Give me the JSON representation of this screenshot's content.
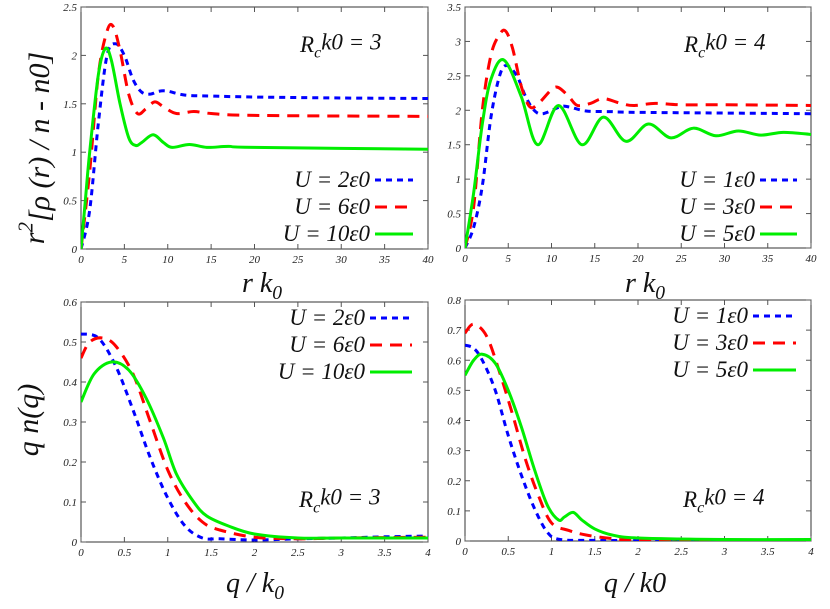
{
  "chart_data": [
    {
      "type": "line",
      "panel": "top-left",
      "xlabel": [
        "r k",
        "0"
      ],
      "ylabel": [
        "r",
        "2",
        "[ρ (r) / n - n0]"
      ],
      "annotation": [
        "R",
        "c",
        "k0 = 3"
      ],
      "xlim": [
        0,
        40
      ],
      "ylim": [
        0,
        2.5
      ],
      "xticks": [
        "0",
        "5",
        "10",
        "15",
        "20",
        "25",
        "30",
        "35",
        "40"
      ],
      "yticks": [
        "0",
        "0.5",
        "1",
        "1.5",
        "2",
        "2.5"
      ],
      "legend_placement": "bottom-right",
      "series": [
        {
          "name": "U = 2ε0",
          "color": "#0000ff",
          "style": "dotted",
          "x": [
            0,
            1,
            2,
            3,
            4,
            5,
            6,
            7,
            8,
            9,
            10,
            12,
            15,
            20,
            30,
            40
          ],
          "y": [
            0,
            0.4,
            1.3,
            2.0,
            2.12,
            2.0,
            1.75,
            1.62,
            1.6,
            1.63,
            1.63,
            1.59,
            1.58,
            1.57,
            1.56,
            1.555
          ]
        },
        {
          "name": "U = 6ε0",
          "color": "#ff0000",
          "style": "dashed",
          "x": [
            0,
            1,
            2,
            3,
            3.7,
            4.5,
            5.5,
            6.5,
            7.5,
            8.5,
            9.5,
            11,
            13,
            15,
            20,
            40
          ],
          "y": [
            0,
            0.8,
            1.8,
            2.25,
            2.3,
            2.05,
            1.6,
            1.4,
            1.45,
            1.52,
            1.47,
            1.4,
            1.42,
            1.4,
            1.38,
            1.37
          ]
        },
        {
          "name": "U = 10ε0",
          "color": "#00ee00",
          "style": "solid",
          "x": [
            0,
            0.5,
            1,
            2,
            2.8,
            3.5,
            4.5,
            5.5,
            6.3,
            7,
            8.3,
            9.5,
            10.5,
            12.5,
            14.5,
            17,
            20,
            40
          ],
          "y": [
            0,
            0.5,
            1.0,
            1.8,
            2.07,
            1.95,
            1.5,
            1.15,
            1.07,
            1.1,
            1.18,
            1.1,
            1.05,
            1.08,
            1.05,
            1.06,
            1.05,
            1.03
          ]
        }
      ]
    },
    {
      "type": "line",
      "panel": "top-right",
      "xlabel": [
        "r k",
        "0"
      ],
      "annotation": [
        "R",
        "c",
        "k0 = 4"
      ],
      "xlim": [
        0,
        40
      ],
      "ylim": [
        0,
        3.5
      ],
      "xticks": [
        "0",
        "5",
        "10",
        "15",
        "20",
        "25",
        "30",
        "35",
        "40"
      ],
      "yticks": [
        "0",
        "0.5",
        "1",
        "1.5",
        "2",
        "2.5",
        "3",
        "3.5"
      ],
      "legend_placement": "bottom-right",
      "series": [
        {
          "name": "U = 1ε0",
          "color": "#0000ff",
          "style": "dotted",
          "x": [
            0,
            1,
            2,
            3,
            4,
            4.8,
            6,
            7,
            8,
            9,
            11,
            12,
            14,
            17,
            20,
            40
          ],
          "y": [
            0,
            0.3,
            0.9,
            1.9,
            2.5,
            2.65,
            2.5,
            2.2,
            2.0,
            1.95,
            2.05,
            2.05,
            1.99,
            1.98,
            1.97,
            1.95
          ]
        },
        {
          "name": "U = 3ε0",
          "color": "#ff0000",
          "style": "dashed",
          "x": [
            0,
            1,
            2,
            3,
            4,
            4.7,
            5.5,
            6.5,
            7.5,
            8.5,
            10,
            10.8,
            12,
            13,
            14.5,
            16,
            18,
            19.5,
            22,
            25,
            30,
            40
          ],
          "y": [
            0,
            0.6,
            2.0,
            2.8,
            3.1,
            3.15,
            2.9,
            2.35,
            2.05,
            2.1,
            2.3,
            2.33,
            2.2,
            2.07,
            2.1,
            2.17,
            2.1,
            2.07,
            2.1,
            2.08,
            2.08,
            2.07
          ]
        },
        {
          "name": "U = 5ε0",
          "color": "#00ee00",
          "style": "solid",
          "x": [
            0,
            1,
            2,
            3,
            4.5,
            6.5,
            8.4,
            10.8,
            13.5,
            16,
            18.6,
            21.2,
            23.8,
            26.4,
            29,
            31.6,
            34.2,
            36.8,
            40
          ],
          "y": [
            0,
            0.8,
            1.8,
            2.45,
            2.73,
            2.2,
            1.5,
            2.07,
            1.5,
            1.9,
            1.55,
            1.8,
            1.6,
            1.74,
            1.63,
            1.7,
            1.64,
            1.68,
            1.65
          ]
        }
      ]
    },
    {
      "type": "line",
      "panel": "bottom-left",
      "xlabel": [
        "q / k",
        "0"
      ],
      "ylabel": [
        "q n(q)"
      ],
      "annotation": [
        "R",
        "c",
        "k0 = 3"
      ],
      "xlim": [
        0,
        4
      ],
      "ylim": [
        0,
        0.6
      ],
      "xticks": [
        "0",
        "0.5",
        "1",
        "1.5",
        "2",
        "2.5",
        "3",
        "3.5",
        "4"
      ],
      "yticks": [
        "0",
        "0.1",
        "0.2",
        "0.3",
        "0.4",
        "0.5",
        "0.6"
      ],
      "legend_placement": "top-right",
      "series": [
        {
          "name": "U = 2ε0",
          "color": "#0000ff",
          "style": "dotted",
          "x": [
            0,
            0.2,
            0.4,
            0.6,
            0.8,
            1.0,
            1.2,
            1.4,
            1.6,
            2,
            2.5,
            3,
            3.5,
            4
          ],
          "y": [
            0.52,
            0.51,
            0.44,
            0.33,
            0.21,
            0.11,
            0.04,
            0.01,
            0.008,
            0.005,
            0.008,
            0.01,
            0.013,
            0.015
          ]
        },
        {
          "name": "U = 6ε0",
          "color": "#ff0000",
          "style": "dashed",
          "x": [
            0,
            0.1,
            0.25,
            0.4,
            0.6,
            0.8,
            1.0,
            1.2,
            1.4,
            1.6,
            2,
            2.5,
            3,
            4
          ],
          "y": [
            0.46,
            0.5,
            0.51,
            0.49,
            0.42,
            0.3,
            0.18,
            0.1,
            0.05,
            0.03,
            0.012,
            0.008,
            0.01,
            0.012
          ]
        },
        {
          "name": "U = 10ε0",
          "color": "#00ee00",
          "style": "solid",
          "x": [
            0,
            0.15,
            0.35,
            0.55,
            0.75,
            0.95,
            1.1,
            1.3,
            1.45,
            1.7,
            2,
            2.5,
            3,
            4
          ],
          "y": [
            0.35,
            0.42,
            0.45,
            0.43,
            0.36,
            0.26,
            0.17,
            0.1,
            0.065,
            0.04,
            0.02,
            0.01,
            0.01,
            0.01
          ]
        }
      ]
    },
    {
      "type": "line",
      "panel": "bottom-right",
      "xlabel": [
        "q / k0"
      ],
      "annotation": [
        "R",
        "c",
        "k0 = 4"
      ],
      "xlim": [
        0,
        4
      ],
      "ylim": [
        0,
        0.8
      ],
      "xticks": [
        "0",
        "0.5",
        "1",
        "1.5",
        "2",
        "2.5",
        "3",
        "3.5",
        "4"
      ],
      "yticks": [
        "0",
        "0.1",
        "0.2",
        "0.3",
        "0.4",
        "0.5",
        "0.6",
        "0.7",
        "0.8"
      ],
      "legend_placement": "top-right",
      "series": [
        {
          "name": "U = 1ε0",
          "color": "#0000ff",
          "style": "dotted",
          "x": [
            0,
            0.1,
            0.2,
            0.35,
            0.5,
            0.65,
            0.8,
            0.95,
            1.1,
            1.5,
            2,
            4
          ],
          "y": [
            0.65,
            0.64,
            0.6,
            0.5,
            0.35,
            0.22,
            0.11,
            0.03,
            0.005,
            0.002,
            0.002,
            0.003
          ]
        },
        {
          "name": "U = 3ε0",
          "color": "#ff0000",
          "style": "dashed",
          "x": [
            0,
            0.1,
            0.25,
            0.4,
            0.55,
            0.7,
            0.85,
            1.0,
            1.2,
            1.4,
            1.7,
            2,
            4
          ],
          "y": [
            0.69,
            0.72,
            0.68,
            0.56,
            0.42,
            0.27,
            0.15,
            0.06,
            0.035,
            0.02,
            0.008,
            0.004,
            0.003
          ]
        },
        {
          "name": "U = 5ε0",
          "color": "#00ee00",
          "style": "solid",
          "x": [
            0,
            0.1,
            0.2,
            0.35,
            0.5,
            0.65,
            0.8,
            0.95,
            1.08,
            1.15,
            1.25,
            1.35,
            1.5,
            1.7,
            2,
            3,
            4
          ],
          "y": [
            0.55,
            0.6,
            0.62,
            0.59,
            0.5,
            0.38,
            0.24,
            0.12,
            0.07,
            0.08,
            0.095,
            0.07,
            0.04,
            0.02,
            0.01,
            0.005,
            0.005
          ]
        }
      ]
    }
  ]
}
